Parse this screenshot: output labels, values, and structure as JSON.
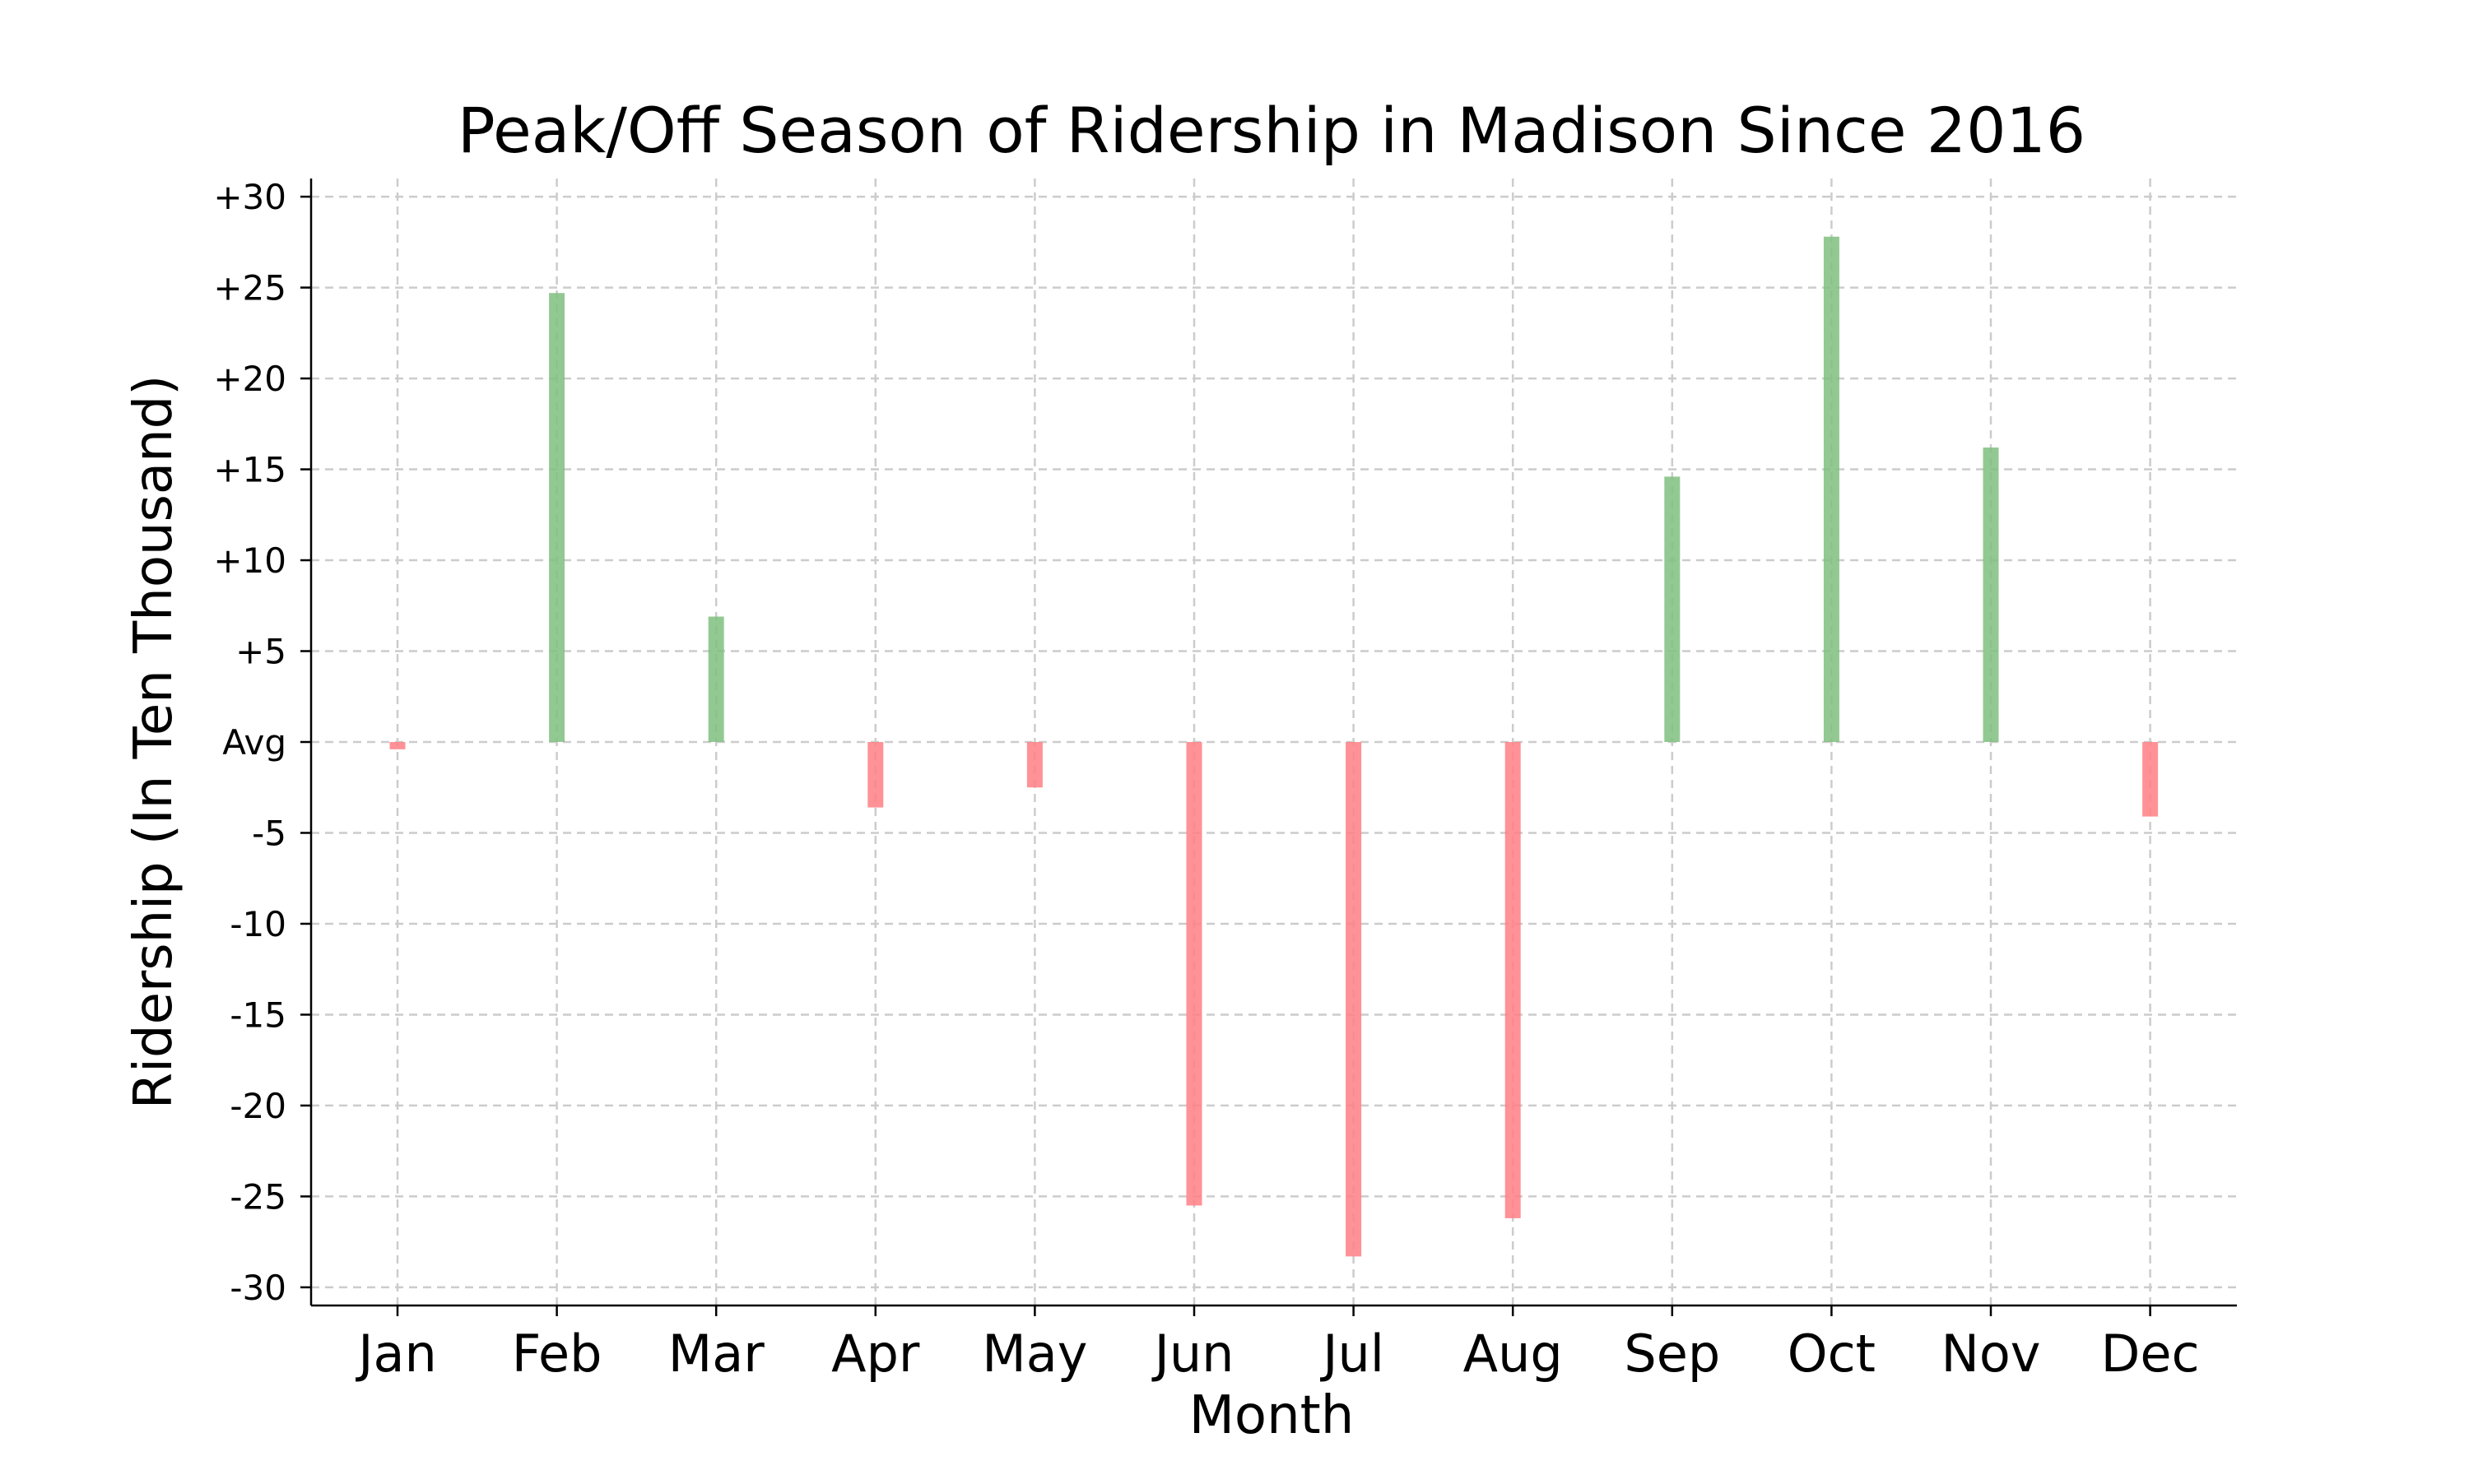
{
  "chart_data": {
    "type": "bar",
    "title": "Peak/Off Season of Ridership in Madison Since 2016",
    "xlabel": "Month",
    "ylabel": "Ridership (In Ten Thousand)",
    "categories": [
      "Jan",
      "Feb",
      "Mar",
      "Apr",
      "May",
      "Jun",
      "Jul",
      "Aug",
      "Sep",
      "Oct",
      "Nov",
      "Dec"
    ],
    "values": [
      -0.4,
      24.7,
      6.9,
      -3.6,
      -2.5,
      -25.5,
      -28.3,
      -26.2,
      14.6,
      27.8,
      16.2,
      -4.1
    ],
    "ylim": [
      -31,
      31
    ],
    "yticks": [
      30,
      25,
      20,
      15,
      10,
      5,
      0,
      -5,
      -10,
      -15,
      -20,
      -25,
      -30
    ],
    "ytick_labels": [
      "+30",
      "+25",
      "+20",
      "+15",
      "+10",
      "+5",
      "Avg",
      "-5",
      "-10",
      "-15",
      "-20",
      "-25",
      "-30"
    ],
    "grid": true,
    "colors": {
      "positive": "#7fbf7f",
      "negative": "#ff7f84",
      "grid": "#cccccc"
    }
  }
}
